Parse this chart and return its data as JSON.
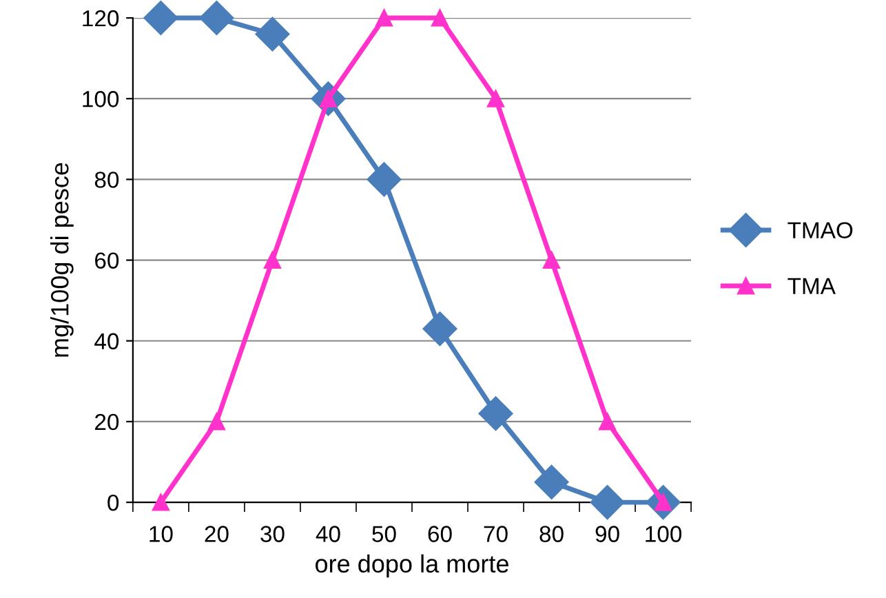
{
  "chart_data": {
    "type": "line",
    "xlabel": "ore dopo la morte",
    "ylabel": "mg/100g di pesce",
    "categories": [
      "10",
      "20",
      "30",
      "40",
      "50",
      "60",
      "70",
      "80",
      "90",
      "100"
    ],
    "series": [
      {
        "name": "TMAO",
        "color": "#4a7ebb",
        "marker": "diamond",
        "values": [
          120,
          120,
          116,
          100,
          80,
          43,
          22,
          5,
          0,
          0
        ]
      },
      {
        "name": "TMA",
        "color": "#ff33cc",
        "marker": "triangle",
        "values": [
          0,
          20,
          60,
          100,
          120,
          120,
          100,
          60,
          20,
          0
        ]
      }
    ],
    "ylim": [
      0,
      120
    ],
    "yticks": [
      0,
      20,
      40,
      60,
      80,
      100,
      120
    ],
    "grid": "y",
    "legend": "right",
    "line_style": "solid"
  }
}
